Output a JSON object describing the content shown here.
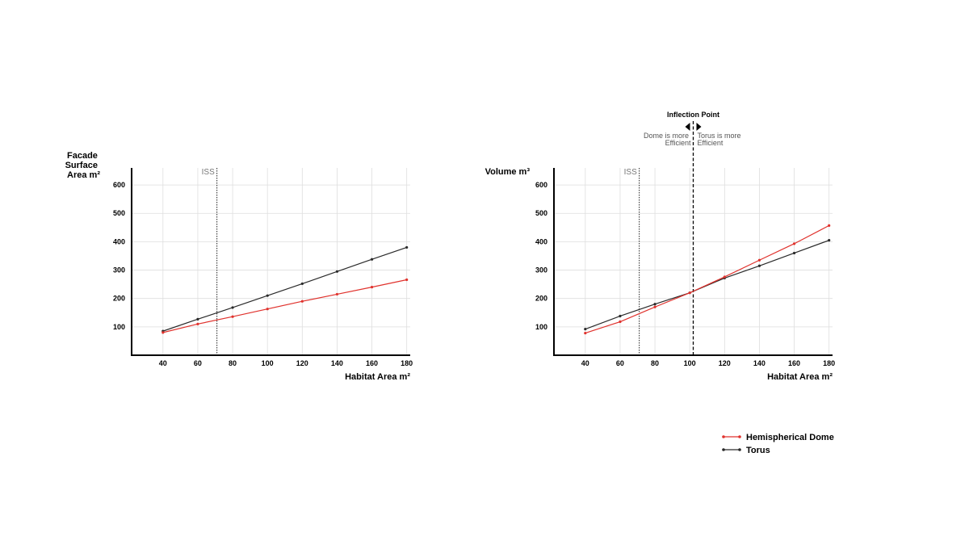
{
  "colors": {
    "dome": "#e0322d",
    "torus": "#2a2a2a",
    "grid": "#dedede",
    "axis": "#000000"
  },
  "legend": [
    {
      "name": "Hemispherical Dome",
      "color": "#e0322d"
    },
    {
      "name": "Torus",
      "color": "#2a2a2a"
    }
  ],
  "chart_data": [
    {
      "type": "line",
      "ylabel_lines": [
        "Facade",
        "Surface",
        "Area m²"
      ],
      "xlabel": "Habitat Area m²",
      "xticks": [
        40,
        60,
        80,
        100,
        120,
        140,
        160,
        180
      ],
      "yticks": [
        100,
        200,
        300,
        400,
        500,
        600
      ],
      "xlim": [
        22,
        182
      ],
      "ylim": [
        0,
        660
      ],
      "grid": true,
      "iss": {
        "label": "ISS",
        "x": 71
      },
      "series": [
        {
          "key": "torus",
          "x": [
            40,
            60,
            80,
            100,
            120,
            140,
            160,
            180
          ],
          "y": [
            85,
            127,
            168,
            210,
            252,
            295,
            338,
            380
          ]
        },
        {
          "key": "dome",
          "x": [
            40,
            60,
            80,
            100,
            120,
            140,
            160,
            180
          ],
          "y": [
            80,
            110,
            136,
            163,
            190,
            215,
            240,
            266
          ]
        }
      ]
    },
    {
      "type": "line",
      "ylabel_lines": [
        "Volume m³"
      ],
      "xlabel": "Habitat Area m²",
      "xticks": [
        40,
        60,
        80,
        100,
        120,
        140,
        160,
        180
      ],
      "yticks": [
        100,
        200,
        300,
        400,
        500,
        600
      ],
      "xlim": [
        22,
        182
      ],
      "ylim": [
        0,
        660
      ],
      "grid": true,
      "iss": {
        "label": "ISS",
        "x": 71
      },
      "inflection": {
        "x": 102,
        "title": "Inflection Point",
        "left_note": [
          "Dome is more",
          "Efficient"
        ],
        "right_note": [
          "Torus is more",
          "Efficient"
        ]
      },
      "series": [
        {
          "key": "torus",
          "x": [
            40,
            60,
            80,
            100,
            120,
            140,
            160,
            180
          ],
          "y": [
            92,
            138,
            180,
            220,
            272,
            315,
            360,
            405
          ]
        },
        {
          "key": "dome",
          "x": [
            40,
            60,
            80,
            100,
            120,
            140,
            160,
            180
          ],
          "y": [
            78,
            118,
            170,
            220,
            276,
            335,
            393,
            457
          ]
        }
      ]
    }
  ]
}
